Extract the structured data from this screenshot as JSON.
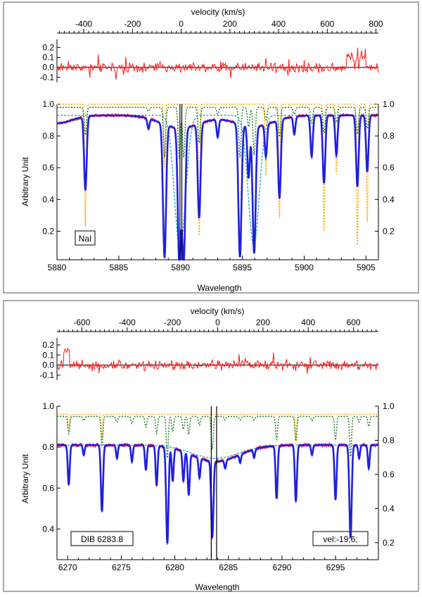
{
  "chart_data": [
    {
      "type": "line",
      "panel": "NaI",
      "annotation": "NaI",
      "xlabel": "Wavelength",
      "ylabel": "Arbitrary Unit",
      "top_axis_label": "velocity (km/s)",
      "xlim": [
        5880,
        5906
      ],
      "ylim": [
        0.02,
        1.0
      ],
      "x_ticks": [
        5880,
        5885,
        5890,
        5895,
        5900,
        5905
      ],
      "y_ticks_left": [
        0.2,
        0.4,
        0.6,
        0.8,
        1.0
      ],
      "y_ticks_right": [
        0.2,
        0.4,
        0.6,
        0.8,
        1.0
      ],
      "velocity_ticks": [
        -400,
        -200,
        0,
        200,
        400,
        600,
        800
      ],
      "velocity_lim": [
        -510,
        810
      ],
      "residual_ylim": [
        -0.15,
        0.28
      ],
      "residual_ticks": [
        -0.1,
        0.0,
        0.1,
        0.2
      ],
      "grid": false,
      "continuum": 0.93,
      "reference_lines": [
        5889.95,
        5890.1
      ],
      "absorption_features": [
        {
          "x": 5882.3,
          "depth": 0.5,
          "telluric_min": 0.23
        },
        {
          "x": 5887.4,
          "depth": 0.07
        },
        {
          "x": 5888.7,
          "depth": 0.9,
          "telluric_min": 0.6
        },
        {
          "x": 5889.9,
          "depth": 0.92
        },
        {
          "x": 5890.25,
          "depth": 0.9
        },
        {
          "x": 5891.5,
          "depth": 0.64,
          "telluric_min": 0.17
        },
        {
          "x": 5893.0,
          "depth": 0.12
        },
        {
          "x": 5894.8,
          "depth": 0.9
        },
        {
          "x": 5895.5,
          "depth": 0.35
        },
        {
          "x": 5895.95,
          "depth": 0.86
        },
        {
          "x": 5896.9,
          "depth": 0.22,
          "telluric_min": 0.55
        },
        {
          "x": 5898.0,
          "depth": 0.53,
          "telluric_min": 0.28
        },
        {
          "x": 5899.2,
          "depth": 0.12
        },
        {
          "x": 5900.6,
          "depth": 0.28
        },
        {
          "x": 5901.6,
          "depth": 0.46,
          "telluric_min": 0.2
        },
        {
          "x": 5902.6,
          "depth": 0.27,
          "telluric_min": 0.56
        },
        {
          "x": 5904.3,
          "depth": 0.48,
          "telluric_min": 0.1
        },
        {
          "x": 5905.1,
          "depth": 0.38,
          "telluric_min": 0.25
        }
      ],
      "interstellar_model": [
        {
          "x": 5889.95,
          "depth": 0.9,
          "width": 0.45
        },
        {
          "x": 5895.92,
          "depth": 0.88,
          "width": 0.45
        }
      ],
      "series": [
        {
          "role": "observed",
          "color": "#ff1a1a",
          "style": "solid"
        },
        {
          "role": "fit",
          "color": "#1f1fe0",
          "style": "solid"
        },
        {
          "role": "telluric",
          "color": "#ffa500",
          "style": "dotted"
        },
        {
          "role": "stellar",
          "color": "#1a7a1a",
          "style": "dotted"
        },
        {
          "role": "interstellar",
          "color": "#20a8c8",
          "style": "dotted"
        }
      ]
    },
    {
      "type": "line",
      "panel": "DIB 6283.8",
      "annotation": "DIB 6283.8",
      "annotation_right": "vel:-19;6;",
      "xlabel": "Wavelength",
      "ylabel": "Arbitrary Unit",
      "top_axis_label": "velocity (km/s)",
      "xlim": [
        6269,
        6299
      ],
      "ylim": [
        0.25,
        1.0
      ],
      "x_ticks": [
        6270,
        6275,
        6280,
        6285,
        6290,
        6295
      ],
      "y_ticks_left": [
        0.4,
        0.6,
        0.8,
        1.0
      ],
      "y_ticks_right": [
        0.2,
        0.4,
        0.6,
        0.8,
        1.0
      ],
      "right_axis_lim": [
        0.1,
        1.0
      ],
      "velocity_ticks": [
        -600,
        -400,
        -200,
        0,
        200,
        400,
        600
      ],
      "velocity_lim": [
        -710,
        710
      ],
      "residual_ylim": [
        -0.15,
        0.27
      ],
      "residual_ticks": [
        -0.1,
        0.0,
        0.1,
        0.2
      ],
      "grid": false,
      "continuum": 0.81,
      "reference_lines": [
        6283.4,
        6283.9
      ],
      "absorption_features": [
        {
          "x": 6270.1,
          "depth": 0.24,
          "telluric_min": 0.93
        },
        {
          "x": 6271.5,
          "depth": 0.06
        },
        {
          "x": 6273.2,
          "depth": 0.4,
          "telluric_min": 0.88
        },
        {
          "x": 6274.6,
          "depth": 0.08
        },
        {
          "x": 6276.0,
          "depth": 0.1
        },
        {
          "x": 6277.3,
          "depth": 0.15
        },
        {
          "x": 6278.3,
          "depth": 0.24
        },
        {
          "x": 6279.3,
          "depth": 0.58
        },
        {
          "x": 6279.8,
          "depth": 0.2
        },
        {
          "x": 6280.8,
          "depth": 0.18
        },
        {
          "x": 6281.3,
          "depth": 0.25
        },
        {
          "x": 6282.3,
          "depth": 0.12
        },
        {
          "x": 6283.5,
          "depth": 0.46
        },
        {
          "x": 6284.7,
          "depth": 0.05
        },
        {
          "x": 6286.1,
          "depth": 0.05
        },
        {
          "x": 6287.4,
          "depth": 0.05
        },
        {
          "x": 6289.5,
          "depth": 0.32
        },
        {
          "x": 6291.3,
          "depth": 0.34,
          "telluric_min": 0.86
        },
        {
          "x": 6292.8,
          "depth": 0.06
        },
        {
          "x": 6295.0,
          "depth": 0.33
        },
        {
          "x": 6296.4,
          "depth": 0.56
        },
        {
          "x": 6297.2,
          "depth": 0.08
        },
        {
          "x": 6298.1,
          "depth": 0.14
        }
      ],
      "dib_profile": {
        "center": 6283.8,
        "depth": 0.08,
        "width": 2.2
      },
      "series": [
        {
          "role": "observed",
          "color": "#ff1a1a",
          "style": "solid"
        },
        {
          "role": "fit",
          "color": "#1f1fe0",
          "style": "solid"
        },
        {
          "role": "telluric",
          "color": "#ffa500",
          "style": "dotted"
        },
        {
          "role": "stellar",
          "color": "#1a7a1a",
          "style": "dotted"
        },
        {
          "role": "interstellar",
          "color": "#20a8c8",
          "style": "dotted"
        }
      ]
    }
  ]
}
